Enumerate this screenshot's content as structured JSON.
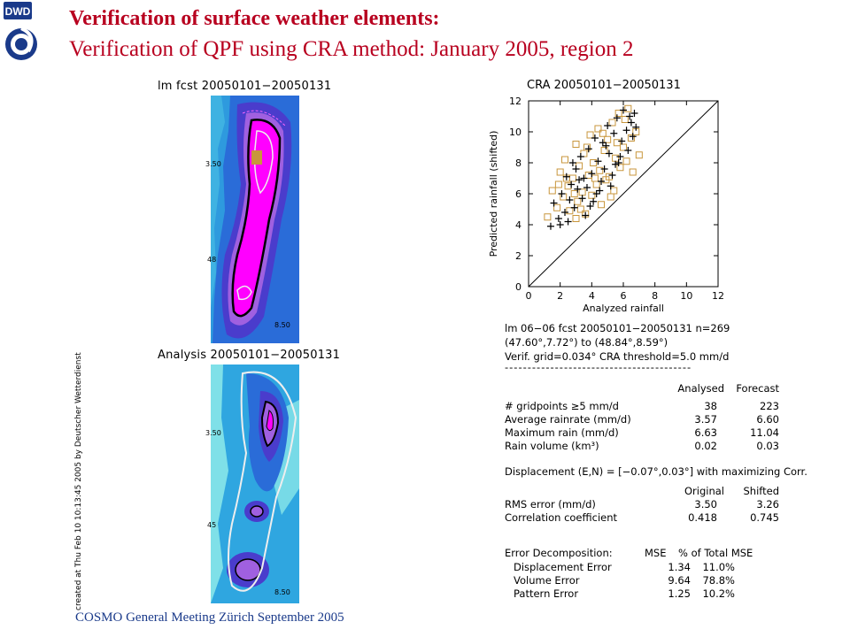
{
  "slide": {
    "title_line1": "Verification of surface weather elements:",
    "title_line2": "Verification of QPF using CRA method: January 2005, region 2",
    "footer": "COSMO General Meeting  Zürich September 2005",
    "logo_text": "DWD",
    "colors": {
      "title": "#b8001f",
      "footer": "#1a3a8a",
      "forecast_marker": "#c8963c",
      "analysis_marker": "#000000"
    }
  },
  "maps": {
    "forecast_caption": "lm fcst 20050101−20050131",
    "analysis_caption": "Analysis 20050101−20050131",
    "side_caption": "created at Thu Feb 10 10:13:45 2005 by Deutscher Wetterdienst",
    "lat_labels_top": [
      "3.50",
      "48",
      "8.50"
    ],
    "lat_labels_bottom": [
      "3.50",
      "45",
      "8.50"
    ]
  },
  "chart_data": {
    "type": "scatter",
    "title": "CRA  20050101−20050131",
    "xlabel": "Analyzed rainfall",
    "ylabel": "Predicted rainfall (shifted)",
    "xlim": [
      0,
      12
    ],
    "ylim": [
      0,
      12
    ],
    "x_ticks": [
      "0",
      "2",
      "4",
      "6",
      "8",
      "10",
      "12"
    ],
    "y_ticks": [
      "0",
      "2",
      "4",
      "6",
      "8",
      "10",
      "12"
    ],
    "diagonal_line": true,
    "series": [
      {
        "marker": "square",
        "color": "#c8963c",
        "points": [
          [
            1.2,
            4.5
          ],
          [
            1.5,
            6.2
          ],
          [
            1.8,
            5.1
          ],
          [
            2.0,
            7.4
          ],
          [
            2.2,
            5.8
          ],
          [
            2.3,
            8.2
          ],
          [
            2.5,
            6.5
          ],
          [
            2.6,
            4.9
          ],
          [
            2.8,
            7.0
          ],
          [
            3.0,
            9.2
          ],
          [
            3.1,
            5.5
          ],
          [
            3.2,
            7.8
          ],
          [
            3.4,
            6.1
          ],
          [
            3.5,
            8.6
          ],
          [
            3.6,
            4.7
          ],
          [
            3.8,
            7.2
          ],
          [
            3.9,
            9.8
          ],
          [
            4.0,
            5.9
          ],
          [
            4.1,
            8.0
          ],
          [
            4.3,
            6.6
          ],
          [
            4.4,
            10.2
          ],
          [
            4.5,
            7.5
          ],
          [
            4.6,
            5.3
          ],
          [
            4.8,
            8.8
          ],
          [
            4.9,
            6.9
          ],
          [
            5.0,
            9.5
          ],
          [
            5.1,
            7.1
          ],
          [
            5.3,
            10.6
          ],
          [
            5.4,
            6.2
          ],
          [
            5.5,
            8.3
          ],
          [
            5.7,
            11.2
          ],
          [
            5.8,
            7.7
          ],
          [
            6.0,
            9.0
          ],
          [
            6.1,
            10.8
          ],
          [
            6.2,
            8.1
          ],
          [
            6.3,
            11.5
          ],
          [
            6.5,
            9.6
          ],
          [
            6.6,
            7.4
          ],
          [
            6.8,
            10.0
          ],
          [
            7.0,
            8.5
          ],
          [
            2.9,
            6.0
          ],
          [
            3.3,
            5.0
          ],
          [
            3.7,
            9.0
          ],
          [
            4.2,
            7.0
          ],
          [
            4.7,
            9.9
          ],
          [
            5.2,
            5.8
          ],
          [
            5.6,
            9.3
          ],
          [
            2.4,
            7.0
          ],
          [
            1.9,
            6.6
          ],
          [
            3.0,
            4.4
          ]
        ]
      },
      {
        "marker": "plus",
        "color": "#000000",
        "points": [
          [
            1.4,
            3.9
          ],
          [
            1.6,
            5.4
          ],
          [
            1.9,
            4.4
          ],
          [
            2.1,
            6.0
          ],
          [
            2.3,
            4.8
          ],
          [
            2.4,
            7.1
          ],
          [
            2.6,
            5.6
          ],
          [
            2.7,
            6.6
          ],
          [
            2.9,
            5.1
          ],
          [
            3.0,
            7.6
          ],
          [
            3.1,
            6.3
          ],
          [
            3.3,
            8.4
          ],
          [
            3.4,
            5.7
          ],
          [
            3.5,
            7.0
          ],
          [
            3.7,
            6.4
          ],
          [
            3.8,
            8.9
          ],
          [
            3.9,
            5.2
          ],
          [
            4.0,
            7.3
          ],
          [
            4.2,
            9.6
          ],
          [
            4.3,
            6.0
          ],
          [
            4.4,
            8.1
          ],
          [
            4.6,
            6.8
          ],
          [
            4.7,
            9.3
          ],
          [
            4.8,
            7.6
          ],
          [
            5.0,
            10.4
          ],
          [
            5.1,
            8.6
          ],
          [
            5.2,
            6.5
          ],
          [
            5.4,
            9.9
          ],
          [
            5.5,
            7.9
          ],
          [
            5.6,
            10.9
          ],
          [
            5.8,
            8.4
          ],
          [
            5.9,
            9.4
          ],
          [
            6.0,
            11.4
          ],
          [
            6.2,
            10.1
          ],
          [
            6.3,
            8.8
          ],
          [
            6.4,
            11.0
          ],
          [
            6.5,
            10.6
          ],
          [
            6.6,
            9.7
          ],
          [
            6.7,
            11.2
          ],
          [
            6.8,
            10.3
          ],
          [
            2.0,
            4.0
          ],
          [
            2.5,
            4.2
          ],
          [
            3.6,
            4.6
          ],
          [
            4.1,
            5.5
          ],
          [
            4.5,
            6.2
          ],
          [
            5.3,
            7.2
          ],
          [
            5.7,
            8.0
          ],
          [
            3.2,
            6.9
          ],
          [
            2.8,
            8.0
          ],
          [
            4.9,
            9.1
          ]
        ]
      }
    ]
  },
  "stats": {
    "header_line1": "lm 06−06 fcst 20050101−20050131  n=269",
    "header_line2": "(47.60°,7.72°) to (48.84°,8.59°)",
    "header_line3": "Verif. grid=0.034°  CRA threshold=5.0 mm/d",
    "separator": "-----------------------------------------",
    "col_analysed": "Analysed",
    "col_forecast": "Forecast",
    "rows1": [
      {
        "label": "# gridpoints ≥5 mm/d",
        "a": "38",
        "f": "223"
      },
      {
        "label": "Average rainrate (mm/d)",
        "a": "3.57",
        "f": "6.60"
      },
      {
        "label": "Maximum rain (mm/d)",
        "a": "6.63",
        "f": "11.04"
      },
      {
        "label": "Rain volume (km³)",
        "a": "0.02",
        "f": "0.03"
      }
    ],
    "displacement": "Displacement (E,N) = [−0.07°,0.03°] with maximizing Corr.",
    "col_original": "Original",
    "col_shifted": "Shifted",
    "rows2": [
      {
        "label": "RMS error (mm/d)",
        "a": "3.50",
        "f": "3.26"
      },
      {
        "label": "Correlation coefficient",
        "a": "0.418",
        "f": "0.745"
      }
    ],
    "decomp_title": "Error Decomposition:",
    "col_mse": "MSE",
    "col_pct": "% of Total MSE",
    "rows3": [
      {
        "label": "Displacement Error",
        "a": "1.34",
        "f": "11.0%"
      },
      {
        "label": "Volume Error",
        "a": "9.64",
        "f": "78.8%"
      },
      {
        "label": "Pattern Error",
        "a": "1.25",
        "f": "10.2%"
      }
    ]
  }
}
